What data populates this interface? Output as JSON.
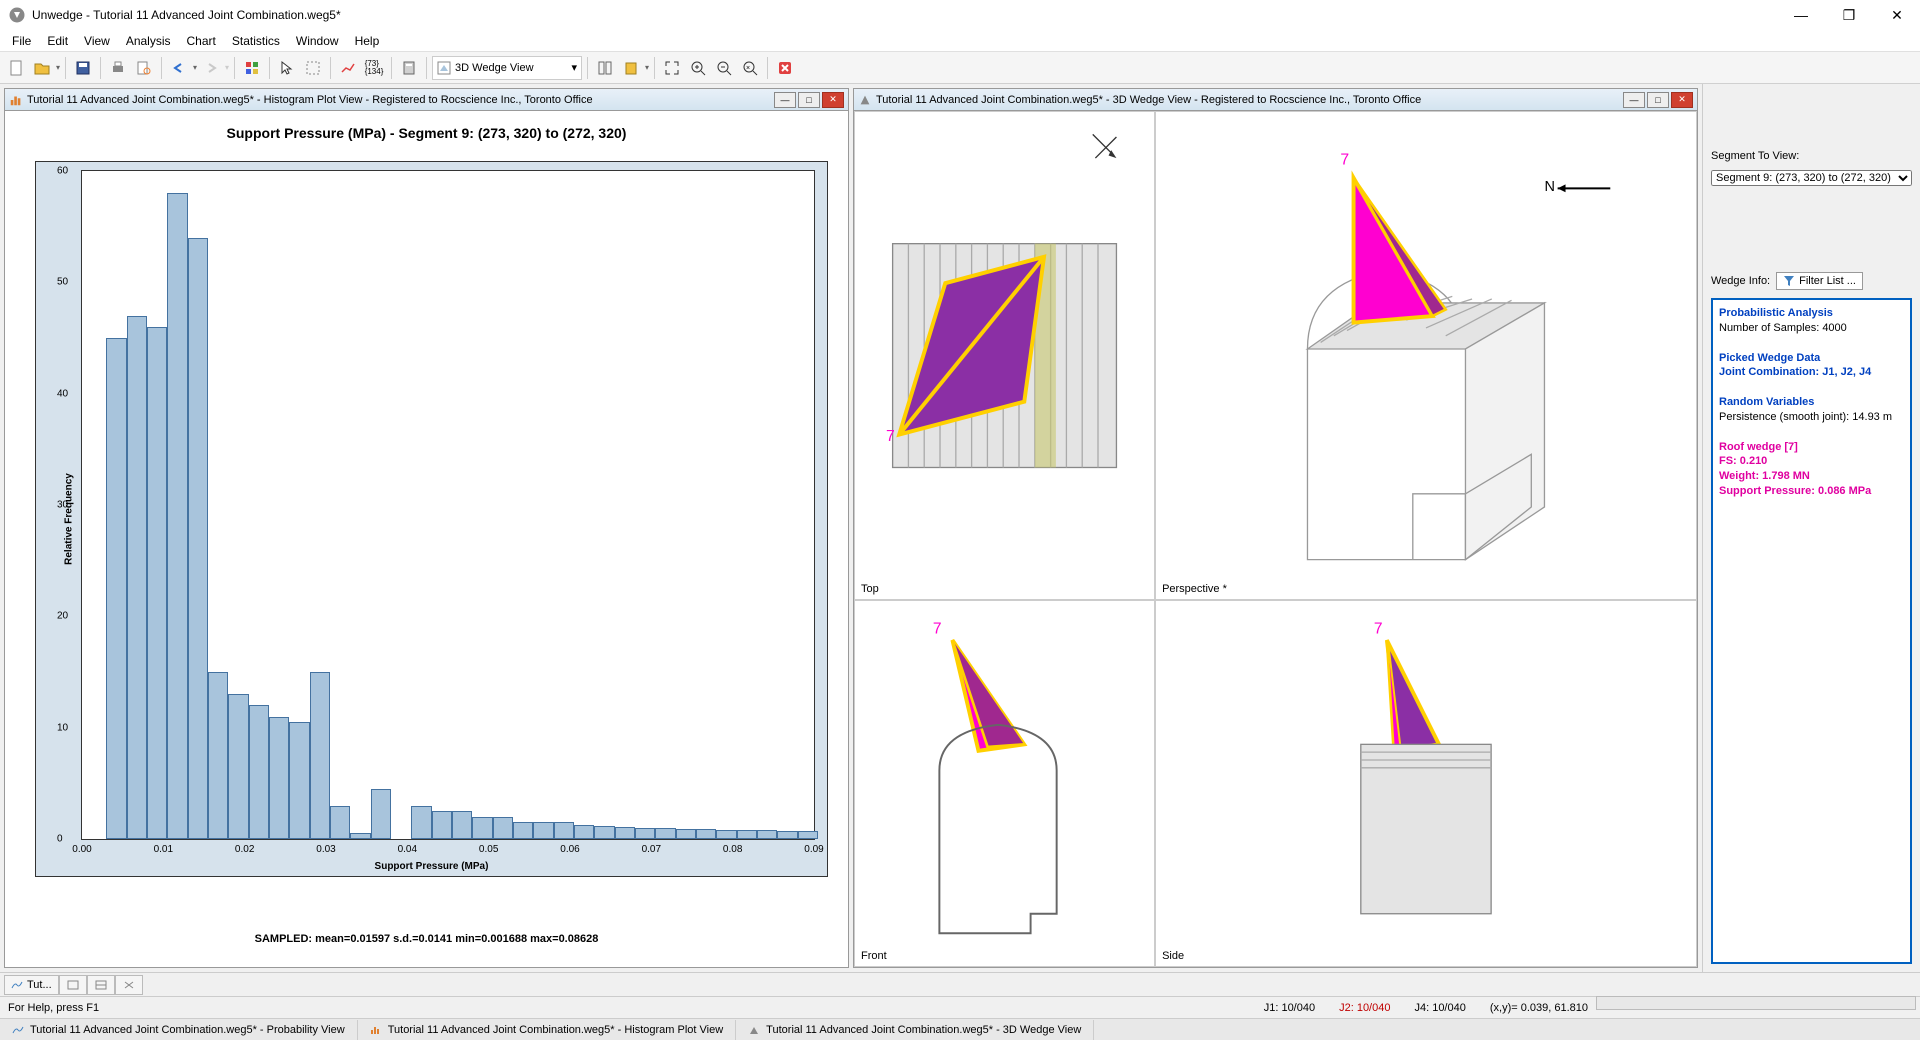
{
  "app": {
    "title": "Unwedge - Tutorial 11 Advanced Joint Combination.weg5*"
  },
  "menu": [
    "File",
    "Edit",
    "View",
    "Analysis",
    "Chart",
    "Statistics",
    "Window",
    "Help"
  ],
  "toolbar": {
    "wedge_view_label": "3D Wedge View"
  },
  "doc_histogram": {
    "title": "Tutorial 11 Advanced Joint Combination.weg5* - Histogram Plot View - Registered to Rocscience Inc., Toronto Office",
    "chart": {
      "type": "histogram",
      "title": "Support Pressure (MPa) - Segment 9: (273, 320) to (272, 320)",
      "xlabel": "Support Pressure (MPa)",
      "ylabel": "Relative Frequency",
      "xlim": [
        0,
        0.09
      ],
      "ylim": [
        0,
        60
      ],
      "xtick_step": 0.01,
      "ytick_step": 10,
      "bar_color": "#a8c4dc",
      "bar_border": "#4472a0",
      "chart_bg": "#d6e2ec",
      "plot_bg": "#ffffff",
      "title_fontsize": 14,
      "label_fontsize": 10,
      "bins_start": 0.003,
      "bin_width": 0.0025,
      "values": [
        45,
        47,
        46,
        58,
        54,
        15,
        13,
        12,
        11,
        10.5,
        15,
        3,
        0.5,
        4.5,
        0,
        3,
        2.5,
        2.5,
        2,
        2,
        1.5,
        1.5,
        1.5,
        1.3,
        1.2,
        1.1,
        1.0,
        1.0,
        0.9,
        0.9,
        0.8,
        0.8,
        0.8,
        0.7,
        0.7
      ],
      "stats_line": "SAMPLED: mean=0.01597 s.d.=0.0141 min=0.001688 max=0.08628"
    }
  },
  "doc_wedge": {
    "title": "Tutorial 11 Advanced Joint Combination.weg5* - 3D Wedge View - Registered to Rocscience Inc., Toronto Office",
    "panes": {
      "top": "Top",
      "perspective": "Perspective *",
      "front": "Front",
      "side": "Side"
    },
    "compass_label": "N",
    "wedge_number": "7",
    "colors": {
      "wedge_magenta": "#ff00d0",
      "wedge_purple": "#8b2fa5",
      "wedge_outline": "#ffd000",
      "tunnel_fill": "#e4e4e4",
      "tunnel_stroke": "#888888"
    }
  },
  "sidebar": {
    "segment_label": "Segment To View:",
    "segment_value": "Segment 9: (273, 320) to (272, 320)",
    "wedge_info_label": "Wedge Info:",
    "filter_btn": "Filter List ...",
    "info": {
      "h1": "Probabilistic Analysis",
      "l1": "Number of Samples: 4000",
      "h2": "Picked Wedge Data",
      "l2": "Joint Combination: J1, J2, J4",
      "h3": "Random Variables",
      "l3": "Persistence (smooth joint): 14.93 m",
      "w1": "Roof wedge [7]",
      "w2": "FS: 0.210",
      "w3": "Weight: 1.798 MN",
      "w4": "Support Pressure: 0.086 MPa"
    }
  },
  "bottom_tabs": {
    "tab1": "Tut..."
  },
  "status": {
    "help": "For Help, press F1",
    "j1": "J1: 10/040",
    "j2": "J2: 10/040",
    "j4": "J4: 10/040",
    "xy": "(x,y)= 0.039, 61.810"
  },
  "doctabs": {
    "t1": "Tutorial 11 Advanced Joint Combination.weg5* - Probability View",
    "t2": "Tutorial 11 Advanced Joint Combination.weg5* - Histogram Plot View",
    "t3": "Tutorial 11 Advanced Joint Combination.weg5* - 3D Wedge View"
  }
}
